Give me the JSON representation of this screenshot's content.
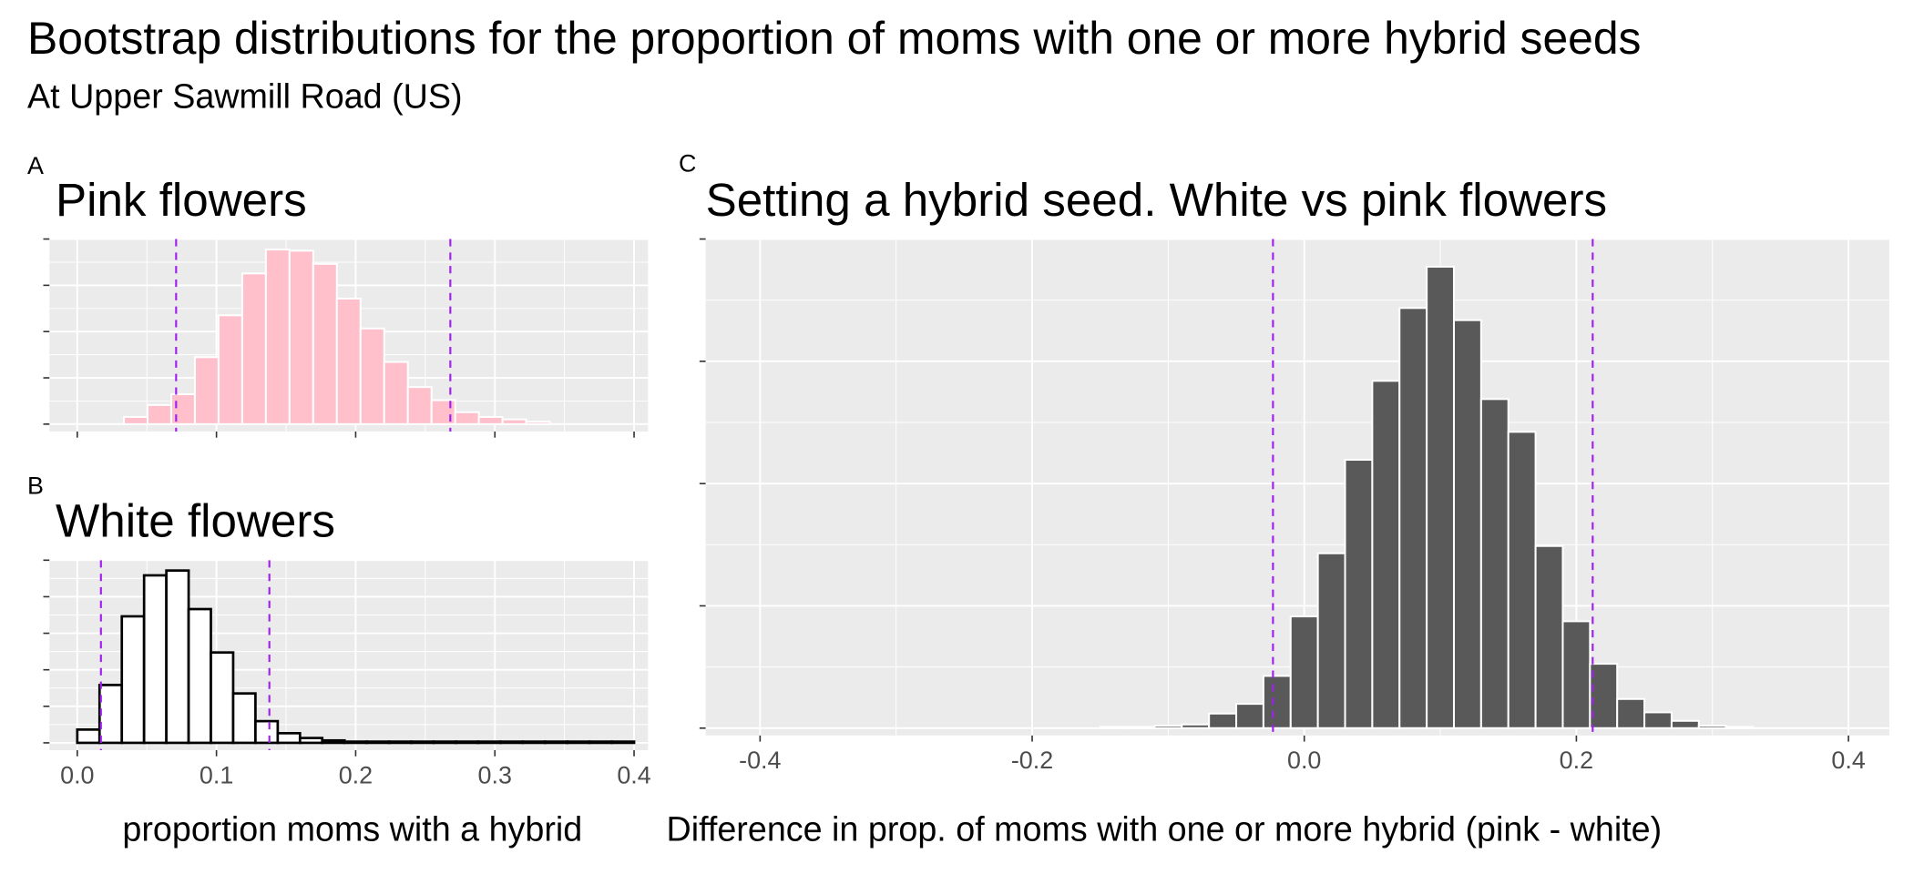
{
  "title": "Bootstrap distributions for the proportion of moms with one or more hybrid seeds",
  "subtitle": "At Upper Sawmill Road (US)",
  "colors": {
    "panel_bg": "#EBEBEB",
    "grid": "#FFFFFF",
    "ci_line": "#A020F0",
    "pink_fill": "#FFC0CB",
    "white_fill": "#FFFFFF",
    "white_outline": "#000000",
    "diff_fill": "#595959"
  },
  "chart_data": [
    {
      "tag": "A",
      "type": "bar",
      "title": "Pink flowers",
      "xlabel": "",
      "ylabel": "",
      "xlim": [
        -0.02,
        0.41
      ],
      "xticks": [
        0.0,
        0.1,
        0.2,
        0.3,
        0.4
      ],
      "xtick_labels": [],
      "grid": true,
      "binwidth": 0.017,
      "bin_centers": [
        0.042,
        0.059,
        0.076,
        0.093,
        0.11,
        0.127,
        0.144,
        0.161,
        0.178,
        0.195,
        0.212,
        0.229,
        0.246,
        0.263,
        0.28,
        0.297,
        0.314,
        0.331
      ],
      "values": [
        6,
        16,
        25,
        56,
        91,
        126,
        146,
        145,
        134,
        105,
        80,
        52,
        31,
        20,
        10,
        6,
        4,
        2
      ],
      "ci": [
        0.071,
        0.268
      ]
    },
    {
      "tag": "B",
      "type": "bar",
      "title": "White flowers",
      "xlabel": "proportion moms with a hybrid",
      "ylabel": "",
      "xlim": [
        -0.02,
        0.41
      ],
      "xticks": [
        0.0,
        0.1,
        0.2,
        0.3,
        0.4
      ],
      "xtick_labels": [
        "0.0",
        "0.1",
        "0.2",
        "0.3",
        "0.4"
      ],
      "grid": true,
      "binwidth": 0.016,
      "bin_centers": [
        0.008,
        0.024,
        0.04,
        0.056,
        0.072,
        0.088,
        0.104,
        0.12,
        0.136,
        0.152,
        0.168,
        0.184,
        0.2,
        0.216,
        0.232,
        0.248,
        0.264,
        0.28,
        0.296,
        0.312,
        0.328,
        0.344,
        0.36,
        0.376,
        0.392
      ],
      "values": [
        11,
        48,
        105,
        139,
        143,
        111,
        75,
        41,
        18,
        8,
        4,
        2,
        1,
        1,
        1,
        1,
        1,
        1,
        1,
        1,
        1,
        1,
        1,
        1,
        1
      ],
      "ci": [
        0.017,
        0.138
      ]
    },
    {
      "tag": "C",
      "type": "bar",
      "title": "Setting a hybrid seed. White vs pink flowers",
      "xlabel": "Difference in prop. of moms with one or more hybrid (pink - white)",
      "ylabel": "",
      "xlim": [
        -0.44,
        0.43
      ],
      "xticks": [
        -0.4,
        -0.2,
        0.0,
        0.2,
        0.4
      ],
      "xtick_labels": [
        "-0.4",
        "-0.2",
        "0.0",
        "0.2",
        "0.4"
      ],
      "grid": true,
      "binwidth": 0.02,
      "bin_centers": [
        -0.14,
        -0.12,
        -0.1,
        -0.08,
        -0.06,
        -0.04,
        -0.02,
        0.0,
        0.02,
        0.04,
        0.06,
        0.08,
        0.1,
        0.12,
        0.14,
        0.16,
        0.18,
        0.2,
        0.22,
        0.24,
        0.26,
        0.28,
        0.3,
        0.32
      ],
      "values": [
        1,
        1,
        2,
        3,
        12,
        20,
        43,
        92,
        144,
        221,
        286,
        346,
        380,
        336,
        271,
        244,
        150,
        88,
        53,
        24,
        13,
        6,
        2,
        1
      ],
      "ci": [
        -0.023,
        0.212
      ]
    }
  ]
}
